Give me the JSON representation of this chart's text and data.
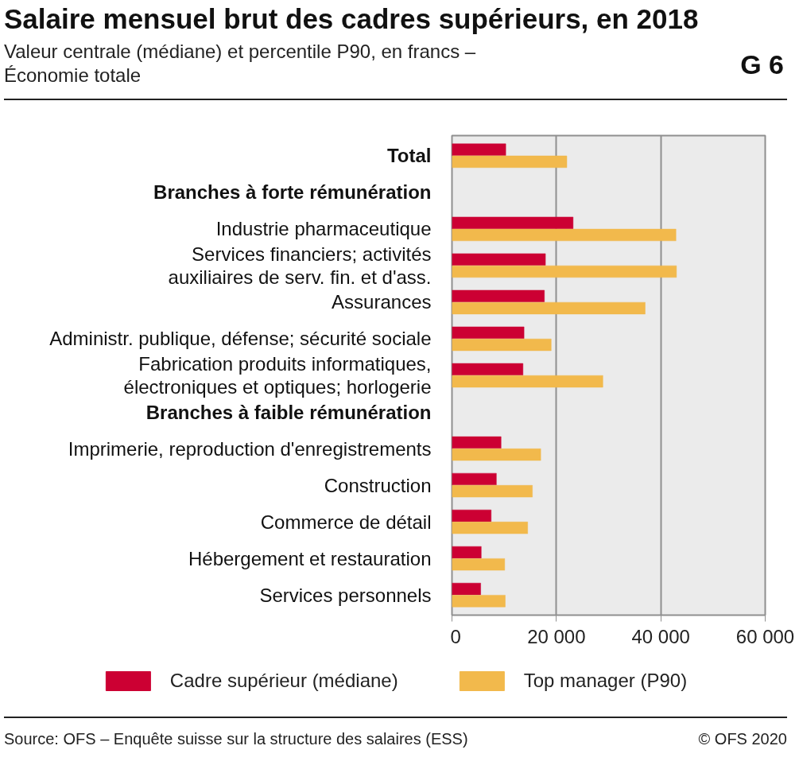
{
  "chart_data": {
    "type": "bar",
    "orientation": "horizontal",
    "title": "Salaire mensuel brut des cadres supérieurs, en 2018",
    "subtitle": "Valeur centrale (médiane) et percentile P90, en francs –\nÉconomie totale",
    "categories": [
      "Total",
      "Branches à forte rémunération",
      "Industrie pharmaceutique",
      "Services financiers; activités\nauxiliaires de serv. fin. et d'ass.",
      "Assurances",
      "Administr. publique, défense; sécurité sociale",
      "Fabrication produits informatiques,\nélectroniques et optiques; horlogerie",
      "Branches à faible rémunération",
      "Imprimerie, reproduction d'enregistrements",
      "Construction",
      "Commerce de détail",
      "Hébergement et restauration",
      "Services personnels"
    ],
    "series": [
      {
        "name": "Cadre supérieur (médiane)",
        "color": "#cc0033",
        "values": [
          10300,
          null,
          23200,
          17900,
          17700,
          13800,
          13600,
          null,
          9400,
          8500,
          7500,
          5600,
          5500
        ]
      },
      {
        "name": "Top manager (P90)",
        "color": "#f2b94c",
        "values": [
          22000,
          null,
          42900,
          43000,
          37000,
          19000,
          28900,
          null,
          17000,
          15400,
          14500,
          10100,
          10200
        ]
      }
    ],
    "xlim": [
      0,
      60000
    ],
    "xticks": [
      0,
      {
        "value": 20000,
        "label": "20 000"
      },
      {
        "value": 40000,
        "label": "40 000"
      },
      {
        "value": 60000,
        "label": "60 000"
      }
    ],
    "grid": "x",
    "legend": "bottom",
    "annotations": [
      "G 6",
      "Source: OFS – Enquête suisse sur la structure des salaires (ESS)",
      "© OFS 2020"
    ]
  }
}
